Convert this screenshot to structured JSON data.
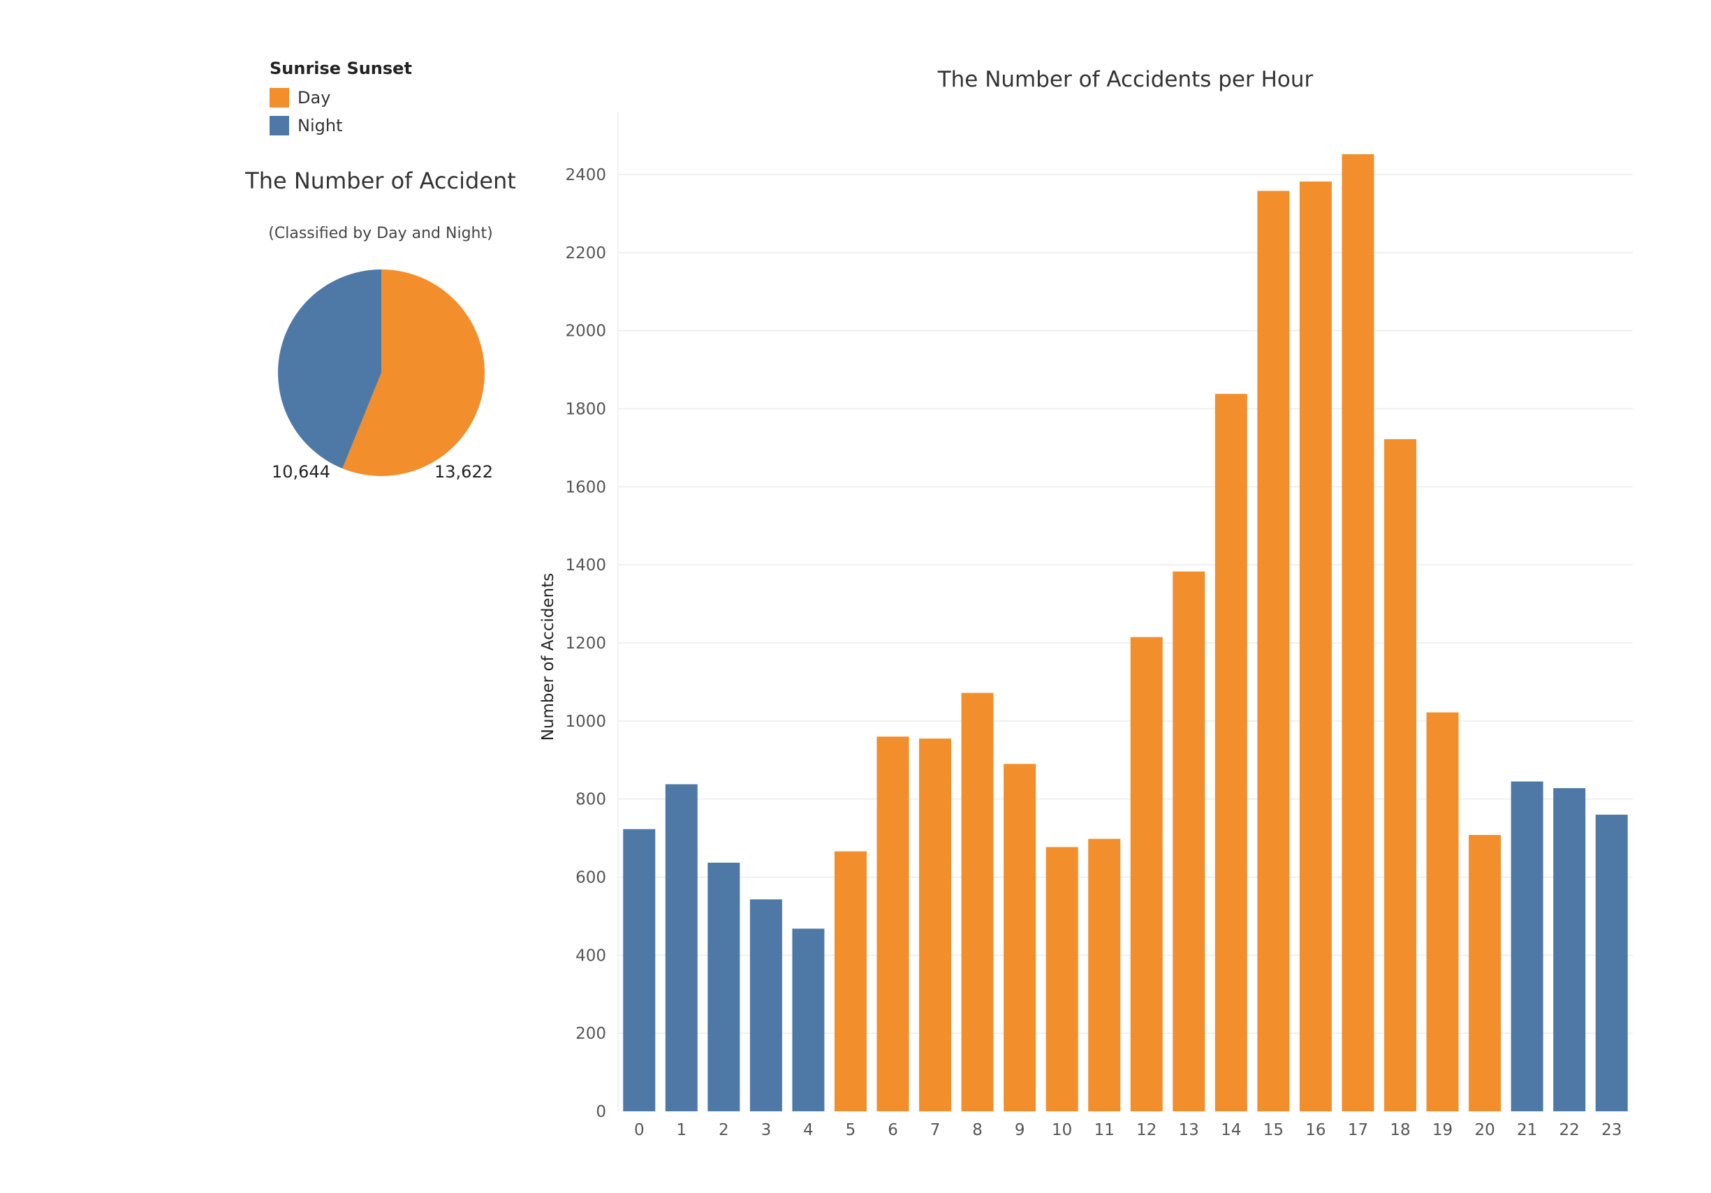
{
  "legend": {
    "title": "Sunrise Sunset",
    "items": [
      {
        "label": "Day",
        "color": "#f28e2c"
      },
      {
        "label": "Night",
        "color": "#4e79a7"
      }
    ]
  },
  "chart_data": [
    {
      "type": "pie",
      "title": "The Number of Accident",
      "subtitle": "(Classified by Day and Night)",
      "slices": [
        {
          "name": "Day",
          "value": 13622,
          "label": "13,622",
          "color": "#f28e2c"
        },
        {
          "name": "Night",
          "value": 10644,
          "label": "10,644",
          "color": "#4e79a7"
        }
      ]
    },
    {
      "type": "bar",
      "title": "The Number of Accidents per Hour",
      "xlabel": "",
      "ylabel": "Number of Accidents",
      "ylim": [
        0,
        2400
      ],
      "yticks": [
        0,
        200,
        400,
        600,
        800,
        1000,
        1200,
        1400,
        1600,
        1800,
        2000,
        2200,
        2400
      ],
      "grid": true,
      "categories": [
        "0",
        "1",
        "2",
        "3",
        "4",
        "5",
        "6",
        "7",
        "8",
        "9",
        "10",
        "11",
        "12",
        "13",
        "14",
        "15",
        "16",
        "17",
        "18",
        "19",
        "20",
        "21",
        "22",
        "23"
      ],
      "values": [
        723,
        838,
        637,
        543,
        468,
        666,
        960,
        955,
        1072,
        890,
        677,
        698,
        1215,
        1383,
        1838,
        2358,
        2382,
        2452,
        1722,
        1022,
        708,
        845,
        828,
        760
      ],
      "period": [
        "Night",
        "Night",
        "Night",
        "Night",
        "Night",
        "Day",
        "Day",
        "Day",
        "Day",
        "Day",
        "Day",
        "Day",
        "Day",
        "Day",
        "Day",
        "Day",
        "Day",
        "Day",
        "Day",
        "Day",
        "Day",
        "Night",
        "Night",
        "Night"
      ],
      "colors": {
        "Day": "#f28e2c",
        "Night": "#4e79a7"
      }
    }
  ]
}
